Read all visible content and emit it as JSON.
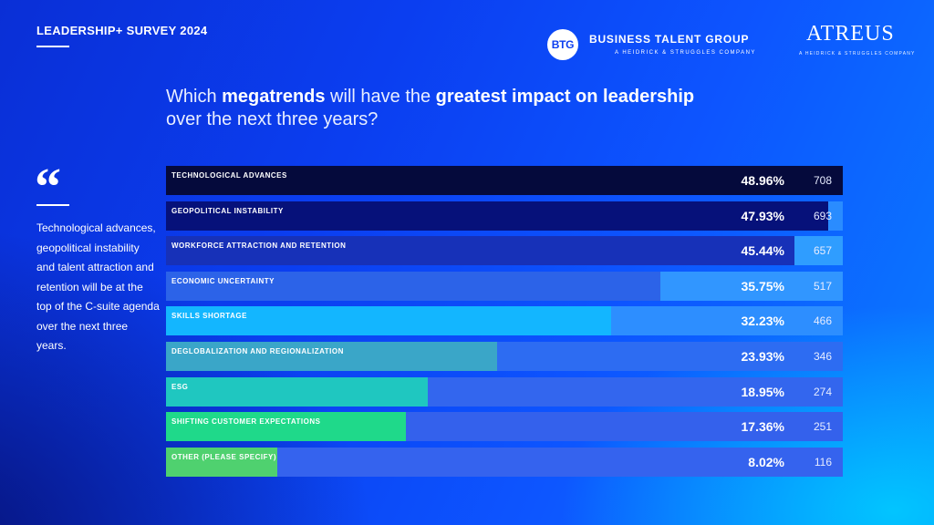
{
  "header": {
    "survey_title": "LEADERSHIP+ SURVEY 2024",
    "btg_logo_text": "BTG",
    "btg_name": "BUSINESS TALENT GROUP",
    "btg_sub": "A HEIDRICK & STRUGGLES COMPANY",
    "atreus_name": "ATREUS",
    "atreus_sub": "A HEIDRICK & STRUGGLES COMPANY"
  },
  "question": {
    "p1": "Which ",
    "b1": "megatrends",
    "p2": " will have the ",
    "b2": "greatest impact on leadership",
    "line2": "over the next three years?"
  },
  "quote": {
    "mark": "“",
    "text": "Technological advances, geopolitical instability and talent attraction and retention will be at the top of the C-suite agenda over the next three years."
  },
  "chart_data": {
    "type": "bar",
    "orientation": "horizontal",
    "title": "Which megatrends will have the greatest impact on leadership over the next three years?",
    "xlim": [
      0,
      48.96
    ],
    "categories": [
      "TECHNOLOGICAL ADVANCES",
      "GEOPOLITICAL INSTABILITY",
      "WORKFORCE ATTRACTION AND RETENTION",
      "ECONOMIC UNCERTAINTY",
      "SKILLS SHORTAGE",
      "DEGLOBALIZATION AND REGIONALIZATION",
      "ESG",
      "SHIFTING CUSTOMER EXPECTATIONS",
      "OTHER (PLEASE SPECIFY)"
    ],
    "values": [
      48.96,
      47.93,
      45.44,
      35.75,
      32.23,
      23.93,
      18.95,
      17.36,
      8.02
    ],
    "value_labels": [
      "48.96%",
      "47.93%",
      "45.44%",
      "35.75%",
      "32.23%",
      "23.93%",
      "18.95%",
      "17.36%",
      "8.02%"
    ],
    "counts": [
      "708",
      "693",
      "657",
      "517",
      "466",
      "346",
      "274",
      "251",
      "116"
    ],
    "bar_colors": [
      "#050a3c",
      "#06117a",
      "#1731b8",
      "#2c63e8",
      "#13b6ff",
      "#3aa6c8",
      "#1fc7c0",
      "#1fd98a",
      "#4fd16f"
    ],
    "track_colors": [
      "#050a3c",
      "#2a8cff",
      "#2f9dff",
      "#3196ff",
      "#2d8eff",
      "#2d6cf2",
      "#3366ee",
      "#3461ec",
      "#3563ee"
    ]
  }
}
